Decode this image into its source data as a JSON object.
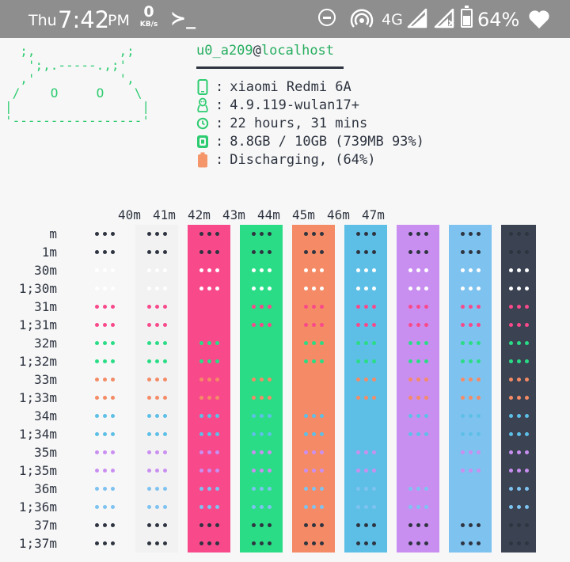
{
  "status_bar": {
    "day": "Thu",
    "time": "7:42",
    "ampm": "PM",
    "net_speed": "0",
    "net_unit": "KB/s",
    "terminal_glyph": "≻_",
    "network_type": "4G",
    "battery_percent": "64%",
    "battery_level": 0.64,
    "icons": [
      "do-not-disturb-icon",
      "hotspot-icon",
      "signal-icon",
      "signal-no-data-icon",
      "battery-icon",
      "heart-icon"
    ],
    "bg_color": "#8e8e8e"
  },
  "neofetch": {
    "ascii_art": "  ;,           ,;\n   ';,.-----.,;'\n  ,'           ',\n /    O     O    \\\n|                 |\n'-----------------'",
    "ascii_color": "#2ecc71",
    "user": "u0_a209",
    "at": "@",
    "host": "localhost",
    "info": [
      {
        "icon": "phone-icon",
        "sep": ":",
        "value": "xiaomi Redmi 6A"
      },
      {
        "icon": "linux-penguin-icon",
        "sep": ":",
        "value": "4.9.119-wulan17+"
      },
      {
        "icon": "clock-icon",
        "sep": ":",
        "value": "22 hours, 31 mins"
      },
      {
        "icon": "memory-chip-icon",
        "sep": ":",
        "value": "8.8GB / 10GB (739MB 93%)"
      },
      {
        "icon": "battery-icon",
        "sep": ":",
        "value": "Discharging, (64%)"
      }
    ],
    "info_icon_colors": [
      "#2ecc71",
      "#2ecc71",
      "#2ecc71",
      "#2ecc71",
      "#f4966a"
    ]
  },
  "color_test": {
    "column_headers": [
      "40m",
      "41m",
      "42m",
      "43m",
      "44m",
      "45m",
      "46m",
      "47m"
    ],
    "row_labels": [
      "m",
      "1m",
      "30m",
      "1;30m",
      "31m",
      "1;31m",
      "32m",
      "1;32m",
      "33m",
      "1;33m",
      "34m",
      "1;34m",
      "35m",
      "1;35m",
      "36m",
      "1;36m",
      "37m",
      "1;37m"
    ],
    "cell_text": "•••",
    "background_colors": [
      "#f7f7f7",
      "#f2f2f2",
      "#f8498b",
      "#2bdc86",
      "#f48b66",
      "#5ebfe6",
      "#c98ff0",
      "#7ec2f0",
      "#3b4252"
    ],
    "foreground_colors": [
      "#2e3440",
      "#2e3440",
      "#ffffff",
      "#ffffff",
      "#f8498b",
      "#f8498b",
      "#2bdc86",
      "#2bdc86",
      "#f48b66",
      "#f48b66",
      "#5ebfe6",
      "#5ebfe6",
      "#c98ff0",
      "#c98ff0",
      "#7ec2f0",
      "#7ec2f0",
      "#2e3440",
      "#2e3440"
    ]
  }
}
